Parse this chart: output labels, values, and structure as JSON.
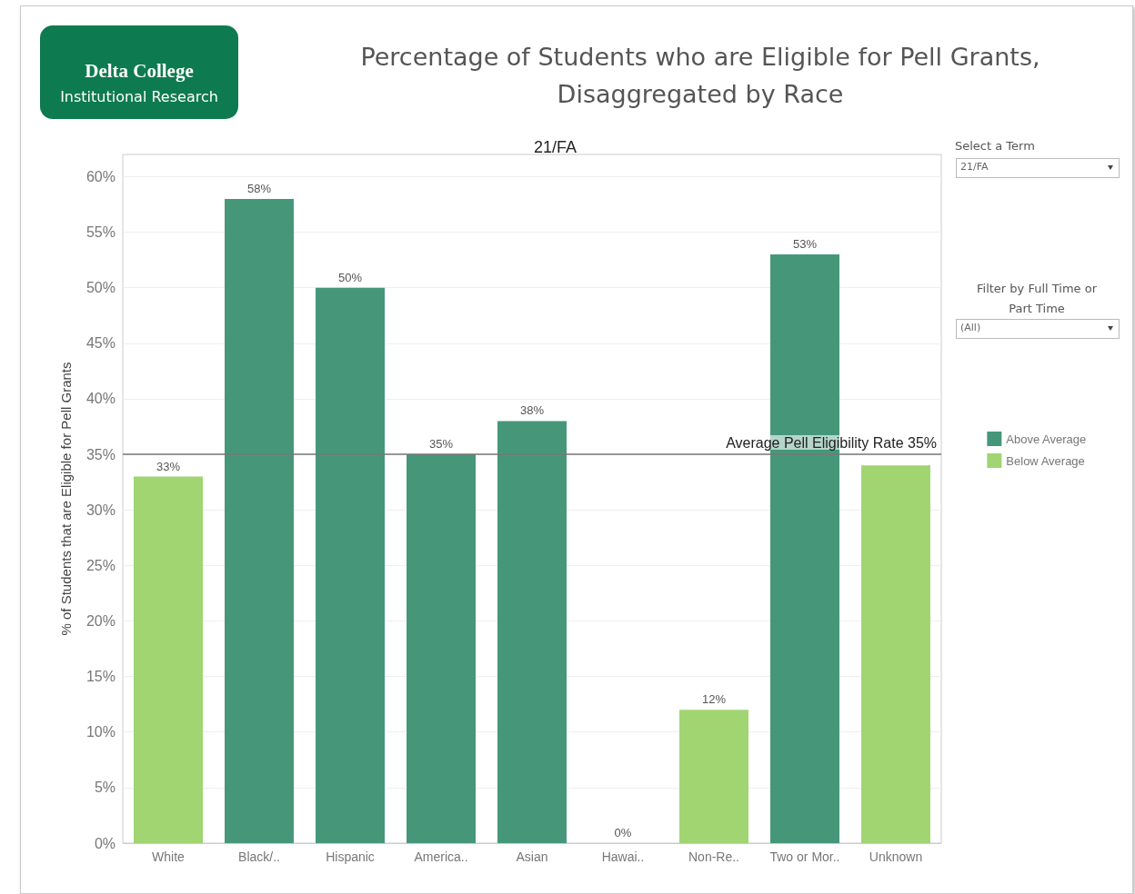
{
  "chart_data": {
    "type": "bar",
    "title": "Percentage of Students who are Eligible for Pell Grants, Disaggregated by Race",
    "subtitle": "21/FA",
    "ylabel": "% of Students that are Eligible for Pell Grants",
    "categories": [
      "White",
      "Black/..",
      "Hispanic",
      "America..",
      "Asian",
      "Hawai..",
      "Non-Re..",
      "Two or Mor..",
      "Unknown"
    ],
    "stacked": true,
    "series": [
      {
        "name": "Above Average",
        "color": "#46977a",
        "values": [
          null,
          58,
          50,
          35,
          38,
          null,
          null,
          53,
          null
        ],
        "value_labels": [
          null,
          "58%",
          "50%",
          "35%",
          "38%",
          null,
          null,
          "53%",
          null
        ]
      },
      {
        "name": "Below Average",
        "color": "#a0d572",
        "values": [
          33,
          null,
          null,
          null,
          null,
          0,
          12,
          null,
          34
        ],
        "value_labels": [
          "33%",
          null,
          null,
          null,
          null,
          "0%",
          "12%",
          null,
          null
        ]
      }
    ],
    "ylim": [
      0,
      62
    ],
    "yticks": [
      {
        "value": 0,
        "label": "0%"
      },
      {
        "value": 5,
        "label": "5%"
      },
      {
        "value": 10,
        "label": "10%"
      },
      {
        "value": 15,
        "label": "15%"
      },
      {
        "value": 20,
        "label": "20%"
      },
      {
        "value": 25,
        "label": "25%"
      },
      {
        "value": 30,
        "label": "30%"
      },
      {
        "value": 35,
        "label": "35%"
      },
      {
        "value": 40,
        "label": "40%"
      },
      {
        "value": 45,
        "label": "45%"
      },
      {
        "value": 50,
        "label": "50%"
      },
      {
        "value": 55,
        "label": "55%"
      },
      {
        "value": 60,
        "label": "60%"
      }
    ],
    "grid": "y",
    "legend": "right",
    "ref_lines": [
      {
        "axis": "y",
        "value": 35,
        "label": "Average Pell Eligibility Rate 35%",
        "color": "#777777"
      }
    ],
    "annotations": [
      "Delta College",
      "Institutional Research",
      "Select a Term",
      "21/FA",
      "Filter by Full Time or Part Time",
      "(All)"
    ]
  }
}
